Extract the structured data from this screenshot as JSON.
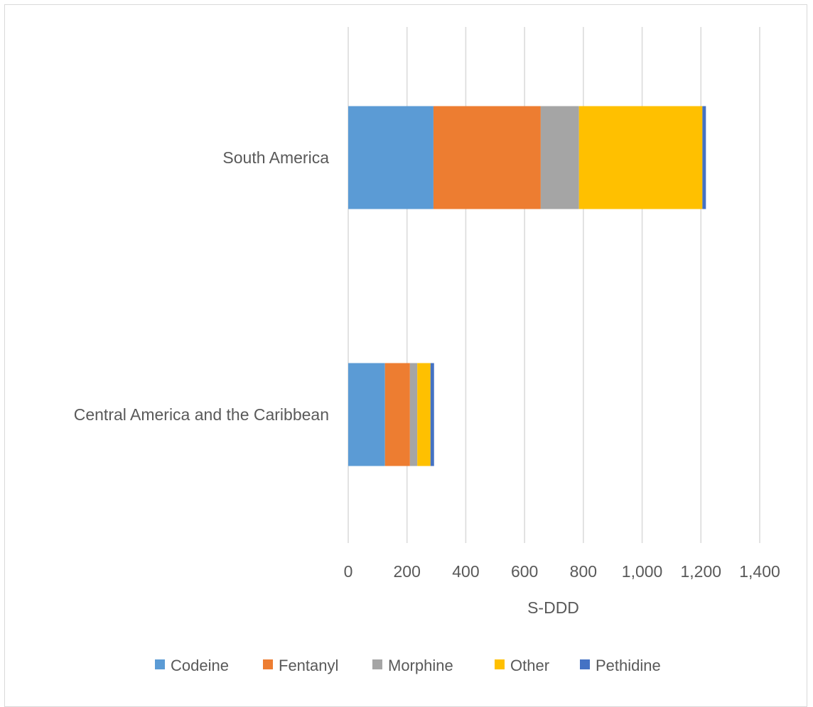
{
  "chart_data": {
    "type": "bar",
    "orientation": "horizontal",
    "stacked": true,
    "categories": [
      "South America",
      "Central America and the Caribbean"
    ],
    "series": [
      {
        "name": "Codeine",
        "color": "#5b9bd5",
        "values": [
          290,
          125
        ]
      },
      {
        "name": "Fentanyl",
        "color": "#ed7d31",
        "values": [
          365,
          85
        ]
      },
      {
        "name": "Morphine",
        "color": "#a5a5a5",
        "values": [
          130,
          25
        ]
      },
      {
        "name": "Other",
        "color": "#ffc000",
        "values": [
          420,
          45
        ]
      },
      {
        "name": "Pethidine",
        "color": "#4472c4",
        "values": [
          12,
          12
        ]
      }
    ],
    "xlabel": "S-DDD",
    "ylabel": "",
    "xlim": [
      0,
      1400
    ],
    "xticks": [
      0,
      200,
      400,
      600,
      800,
      1000,
      1200,
      1400
    ],
    "xtick_labels": [
      "0",
      "200",
      "400",
      "600",
      "800",
      "1,000",
      "1,200",
      "1,400"
    ],
    "grid": "vertical",
    "legend_position": "bottom"
  }
}
